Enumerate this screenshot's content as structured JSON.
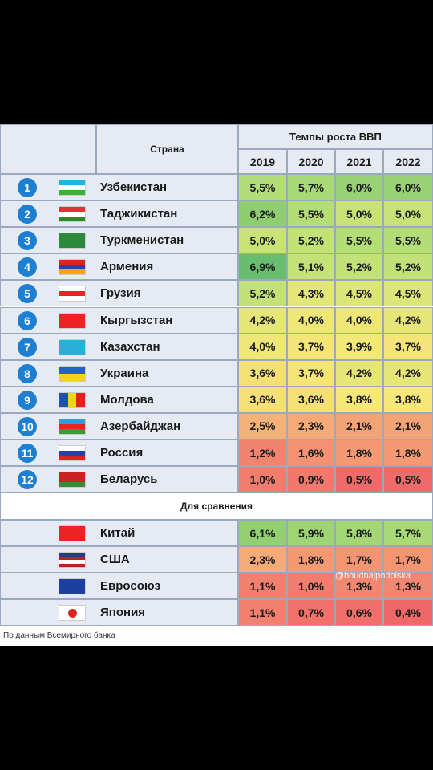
{
  "header": {
    "country": "Страна",
    "title": "Темпы роста ВВП",
    "years": [
      "2019",
      "2020",
      "2021",
      "2022"
    ]
  },
  "table": {
    "rows": [
      [
        "1",
        "Узбекистан",
        "5,5%",
        "5,7%",
        "6,0%",
        "6,0%"
      ],
      [
        "2",
        "Таджикистан",
        "6,2%",
        "5,5%",
        "5,0%",
        "5,0%"
      ],
      [
        "3",
        "Туркменистан",
        "5,0%",
        "5,2%",
        "5,5%",
        "5,5%"
      ],
      [
        "4",
        "Армения",
        "6,9%",
        "5,1%",
        "5,2%",
        "5,2%"
      ],
      [
        "5",
        "Грузия",
        "5,2%",
        "4,3%",
        "4,5%",
        "4,5%"
      ],
      [
        "6",
        "Кыргызстан",
        "4,2%",
        "4,0%",
        "4,0%",
        "4,2%"
      ],
      [
        "7",
        "Казахстан",
        "4,0%",
        "3,7%",
        "3,9%",
        "3,7%"
      ],
      [
        "8",
        "Украина",
        "3,6%",
        "3,7%",
        "4,2%",
        "4,2%"
      ],
      [
        "9",
        "Молдова",
        "3,6%",
        "3,6%",
        "3,8%",
        "3,8%"
      ],
      [
        "10",
        "Азербайджан",
        "2,5%",
        "2,3%",
        "2,1%",
        "2,1%"
      ],
      [
        "11",
        "Россия",
        "1,2%",
        "1,6%",
        "1,8%",
        "1,8%"
      ],
      [
        "12",
        "Беларусь",
        "1,0%",
        "0,9%",
        "0,5%",
        "0,5%"
      ]
    ],
    "comparison_title": "Для сравнения",
    "comparison": [
      [
        "Китай",
        "6,1%",
        "5,9%",
        "5,8%",
        "5,7%"
      ],
      [
        "США",
        "2,3%",
        "1,8%",
        "1,7%",
        "1,7%"
      ],
      [
        "Евросоюз",
        "1,1%",
        "1,0%",
        "1,3%",
        "1,3%"
      ],
      [
        "Япония",
        "1,1%",
        "0,7%",
        "0,6%",
        "0,4%"
      ]
    ]
  },
  "source": "По данным Всемирного банка",
  "watermark": "@boudnajpodpiska"
}
